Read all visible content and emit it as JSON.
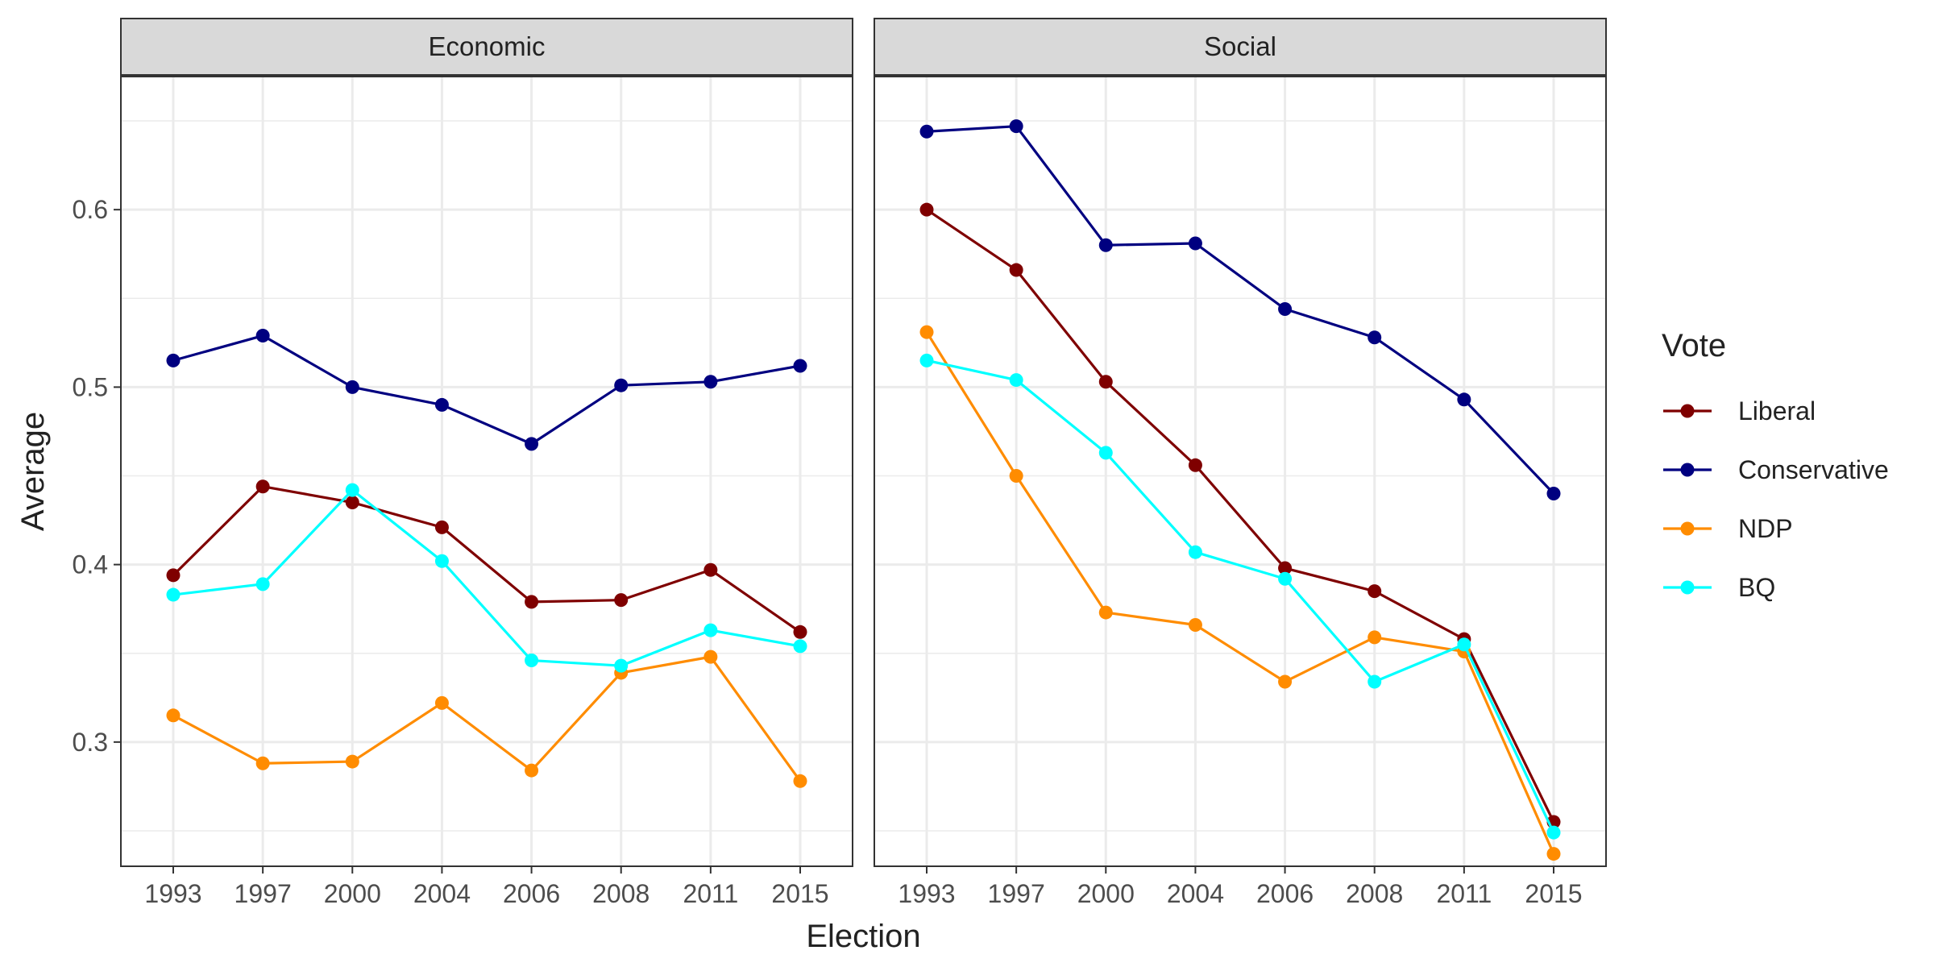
{
  "chart_data": {
    "type": "line",
    "xlabel": "Election",
    "ylabel": "Average",
    "x": [
      "1993",
      "1997",
      "2000",
      "2004",
      "2006",
      "2008",
      "2011",
      "2015"
    ],
    "ylim": [
      0.23,
      0.675
    ],
    "yticks": [
      0.3,
      0.4,
      0.5,
      0.6
    ],
    "ytick_labels": [
      "0.3",
      "0.4",
      "0.5",
      "0.6"
    ],
    "grid": true,
    "legend": {
      "title": "Vote",
      "position": "right",
      "entries": [
        "Liberal",
        "Conservative",
        "NDP",
        "BQ"
      ]
    },
    "colors": {
      "Liberal": "#7f0000",
      "Conservative": "#000080",
      "NDP": "#ff8c00",
      "BQ": "#00ffff"
    },
    "panels": [
      {
        "title": "Economic",
        "series": [
          {
            "name": "Liberal",
            "values": [
              0.394,
              0.444,
              0.435,
              0.421,
              0.379,
              0.38,
              0.397,
              0.362
            ]
          },
          {
            "name": "Conservative",
            "values": [
              0.515,
              0.529,
              0.5,
              0.49,
              0.468,
              0.501,
              0.503,
              0.512
            ]
          },
          {
            "name": "NDP",
            "values": [
              0.315,
              0.288,
              0.289,
              0.322,
              0.284,
              0.339,
              0.348,
              0.278
            ]
          },
          {
            "name": "BQ",
            "values": [
              0.383,
              0.389,
              0.442,
              0.402,
              0.346,
              0.343,
              0.363,
              0.354
            ]
          }
        ]
      },
      {
        "title": "Social",
        "series": [
          {
            "name": "Liberal",
            "values": [
              0.6,
              0.566,
              0.503,
              0.456,
              0.398,
              0.385,
              0.358,
              0.255
            ]
          },
          {
            "name": "Conservative",
            "values": [
              0.644,
              0.647,
              0.58,
              0.581,
              0.544,
              0.528,
              0.493,
              0.44
            ]
          },
          {
            "name": "NDP",
            "values": [
              0.531,
              0.45,
              0.373,
              0.366,
              0.334,
              0.359,
              0.351,
              0.237
            ]
          },
          {
            "name": "BQ",
            "values": [
              0.515,
              0.504,
              0.463,
              0.407,
              0.392,
              0.334,
              0.355,
              0.249
            ]
          }
        ]
      }
    ]
  }
}
